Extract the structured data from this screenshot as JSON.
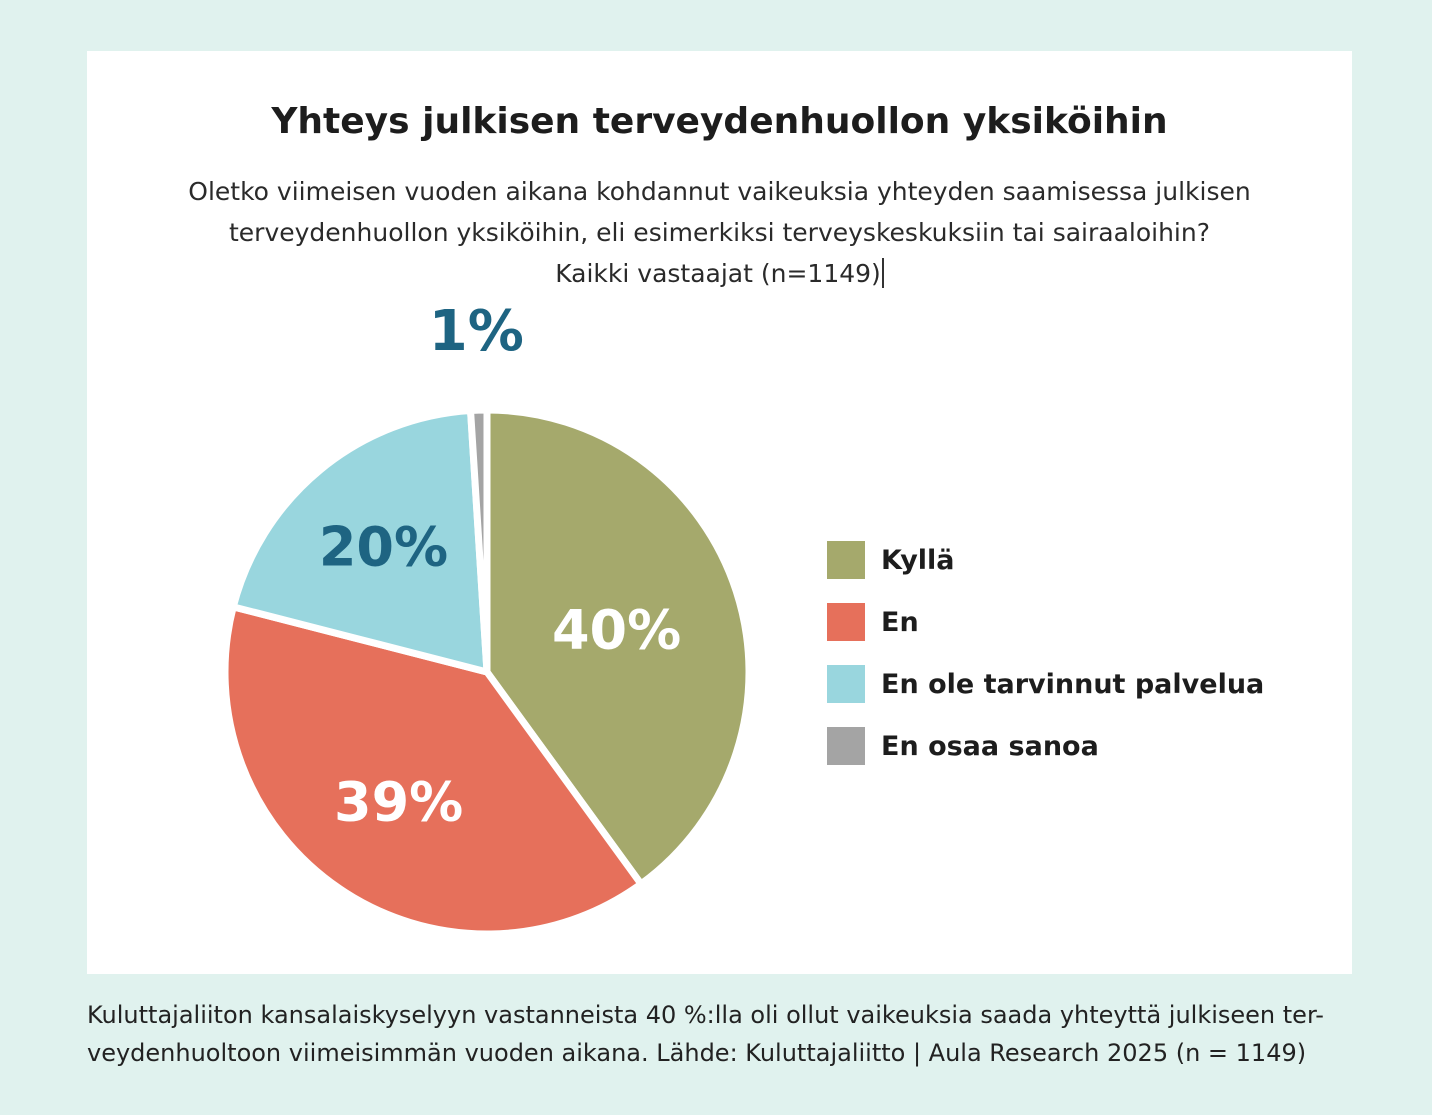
{
  "colors": {
    "background": "#e0f2ee",
    "card": "#ffffff",
    "label_dark": "#1e6482",
    "label_light": "#ffffff"
  },
  "chart_data": {
    "type": "pie",
    "title": "Yhteys julkisen terveydenhuollon yksiköihin",
    "subtitle": [
      "Oletko viimeisen vuoden aikana kohdannut vaikeuksia yhteyden saamisessa julkisen",
      "terveydenhuollon yksiköihin, eli esimerkiksi terveyskeskuksiin tai sairaaloihin?",
      "Kaikki vastaajat (n=1149)"
    ],
    "legend_position": "right",
    "slices": [
      {
        "name": "Kyllä",
        "value": 40,
        "label": "40%",
        "color": "#a5a96c",
        "label_color": "#ffffff"
      },
      {
        "name": "En",
        "value": 39,
        "label": "39%",
        "color": "#e6705b",
        "label_color": "#ffffff"
      },
      {
        "name": "En ole tarvinnut palvelua",
        "value": 20,
        "label": "20%",
        "color": "#99d6de",
        "label_color": "#1e6482"
      },
      {
        "name": "En osaa sanoa",
        "value": 1,
        "label": "1%",
        "color": "#a4a4a4",
        "label_color": "#1e6482"
      }
    ]
  },
  "caption": [
    "Kuluttajaliiton kansalaiskyselyyn vastanneista 40 %:lla oli ollut vaikeuksia saada yhteyttä julkiseen ter-",
    "veydenhuoltoon viimeisimmän vuoden aikana. Lähde: Kuluttajaliitto | Aula Research 2025 (n = 1149)"
  ]
}
